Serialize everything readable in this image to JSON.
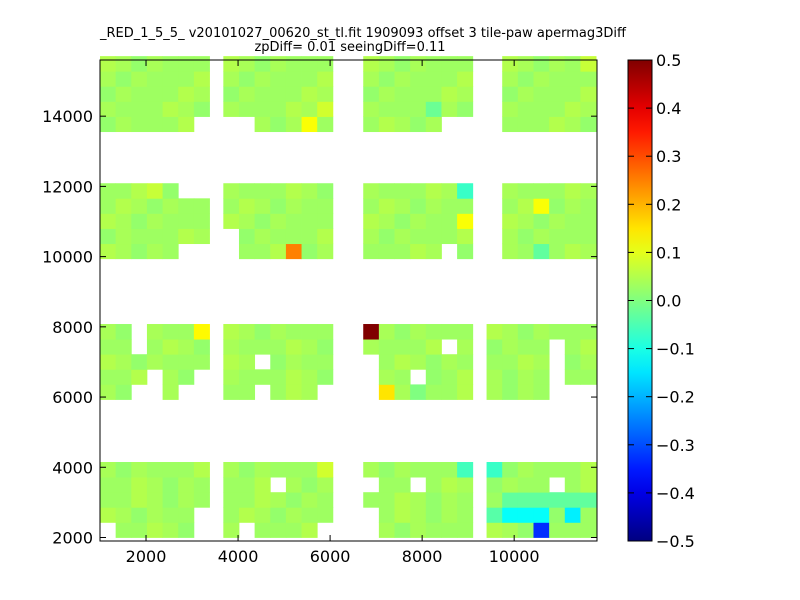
{
  "chart_data": {
    "type": "heatmap",
    "title": "_RED_1_5_5_ v20101027_00620_st_tl.fit 1909093 offset 3 tile-paw apermag3Diff",
    "subtitle": "zpDiff= 0.01 seeingDiff=0.11",
    "xlabel": "",
    "ylabel": "",
    "xlim": [
      1000,
      11800
    ],
    "ylim": [
      1900,
      15600
    ],
    "x_ticks": [
      2000,
      4000,
      6000,
      8000,
      10000
    ],
    "y_ticks": [
      2000,
      4000,
      6000,
      8000,
      10000,
      12000,
      14000
    ],
    "colorbar": {
      "colormap": "jet",
      "range": [
        -0.5,
        0.5
      ],
      "ticks": [
        -0.5,
        -0.4,
        -0.3,
        -0.2,
        -0.1,
        0.0,
        0.1,
        0.2,
        0.3,
        0.4,
        0.5
      ],
      "tick_labels": [
        "−0.5",
        "−0.4",
        "−0.3",
        "−0.2",
        "−0.1",
        "0.0",
        "0.1",
        "0.2",
        "0.3",
        "0.4",
        "0.5"
      ]
    },
    "cell_size": [
      340,
      430
    ],
    "grid": false,
    "columns_x": [
      1000,
      1340,
      1680,
      2020,
      2360,
      2700,
      3040,
      3680,
      4020,
      4360,
      4700,
      5040,
      5380,
      5720,
      6720,
      7060,
      7400,
      7740,
      8080,
      8420,
      8760,
      9400,
      9740,
      10080,
      10420,
      10760,
      11100,
      11440
    ],
    "row_bands_y": [
      [
        2000,
        2430,
        2860,
        3290,
        3720
      ],
      [
        5930,
        6360,
        6790,
        7220,
        7650
      ],
      [
        9940,
        10370,
        10800,
        11230,
        11660
      ],
      [
        13560,
        13990,
        14420,
        14850,
        15280
      ]
    ],
    "default_values": [
      0.03,
      0.03,
      0.05,
      0.04,
      0.02,
      0.04,
      0.03
    ],
    "outliers": [
      {
        "x": 3040,
        "y": 7650,
        "value": 0.13
      },
      {
        "x": 6720,
        "y": 7650,
        "value": 0.5
      },
      {
        "x": 7060,
        "y": 5930,
        "value": 0.15
      },
      {
        "x": 5040,
        "y": 9940,
        "value": 0.25
      },
      {
        "x": 8760,
        "y": 10800,
        "value": 0.12
      },
      {
        "x": 10420,
        "y": 11230,
        "value": 0.12
      },
      {
        "x": 8760,
        "y": 11660,
        "value": -0.07
      },
      {
        "x": 5380,
        "y": 13560,
        "value": 0.12
      },
      {
        "x": 5720,
        "y": 13990,
        "value": 0.08
      },
      {
        "x": 5720,
        "y": 3720,
        "value": 0.08
      },
      {
        "x": 8760,
        "y": 3720,
        "value": -0.06
      },
      {
        "x": 9400,
        "y": 3720,
        "value": -0.07
      },
      {
        "x": 9740,
        "y": 2430,
        "value": -0.12
      },
      {
        "x": 10080,
        "y": 2430,
        "value": -0.12
      },
      {
        "x": 10420,
        "y": 2430,
        "value": -0.12
      },
      {
        "x": 11100,
        "y": 2430,
        "value": -0.14
      },
      {
        "x": 10420,
        "y": 2000,
        "value": -0.33
      },
      {
        "x": 9400,
        "y": 2430,
        "value": -0.04
      },
      {
        "x": 9740,
        "y": 2860,
        "value": -0.03
      },
      {
        "x": 10080,
        "y": 2860,
        "value": -0.03
      },
      {
        "x": 10420,
        "y": 2860,
        "value": -0.03
      },
      {
        "x": 10760,
        "y": 2860,
        "value": -0.03
      },
      {
        "x": 11100,
        "y": 2860,
        "value": -0.03
      },
      {
        "x": 11440,
        "y": 2860,
        "value": -0.03
      },
      {
        "x": 8080,
        "y": 13990,
        "value": -0.02
      },
      {
        "x": 10420,
        "y": 9940,
        "value": -0.03
      },
      {
        "x": 2020,
        "y": 11660,
        "value": 0.07
      },
      {
        "x": 11440,
        "y": 15280,
        "value": 0.07
      },
      {
        "x": 8080,
        "y": 6360,
        "value": 0.02
      },
      {
        "x": 7740,
        "y": 5930,
        "value": 0.0
      }
    ],
    "missing_cells": [
      [
        1000,
        2000
      ],
      [
        3040,
        2000
      ],
      [
        4020,
        2000
      ],
      [
        5720,
        2000
      ],
      [
        6720,
        2000
      ],
      [
        3040,
        2430
      ],
      [
        6720,
        2430
      ],
      [
        4700,
        3290
      ],
      [
        6720,
        3290
      ],
      [
        7740,
        3290
      ],
      [
        10760,
        3290
      ],
      [
        2700,
        5930
      ],
      [
        3040,
        5930
      ],
      [
        2020,
        5930
      ],
      [
        1680,
        5930
      ],
      [
        2020,
        6360
      ],
      [
        3040,
        6360
      ],
      [
        6720,
        5930
      ],
      [
        6720,
        6360
      ],
      [
        7740,
        6360
      ],
      [
        4360,
        6790
      ],
      [
        4360,
        5930
      ],
      [
        5720,
        5930
      ],
      [
        6720,
        6790
      ],
      [
        8420,
        7220
      ],
      [
        10760,
        7220
      ],
      [
        10760,
        6790
      ],
      [
        10760,
        6360
      ],
      [
        10760,
        5930
      ],
      [
        1680,
        7650
      ],
      [
        1680,
        7220
      ],
      [
        11100,
        5930
      ],
      [
        11440,
        5930
      ],
      [
        2700,
        9940
      ],
      [
        3040,
        9940
      ],
      [
        3040,
        11660
      ],
      [
        2700,
        11660
      ],
      [
        8420,
        9940
      ],
      [
        9400,
        11660
      ],
      [
        9400,
        11230
      ],
      [
        9400,
        10800
      ],
      [
        9400,
        10370
      ],
      [
        9400,
        9940
      ],
      [
        3680,
        10370
      ],
      [
        3680,
        9940
      ],
      [
        3040,
        13560
      ],
      [
        3680,
        13560
      ],
      [
        4020,
        13560
      ],
      [
        8760,
        13560
      ],
      [
        9400,
        13560
      ],
      [
        9400,
        14850
      ],
      [
        9400,
        15280
      ],
      [
        8420,
        13560
      ],
      [
        9400,
        13990
      ],
      [
        9400,
        14420
      ]
    ]
  }
}
